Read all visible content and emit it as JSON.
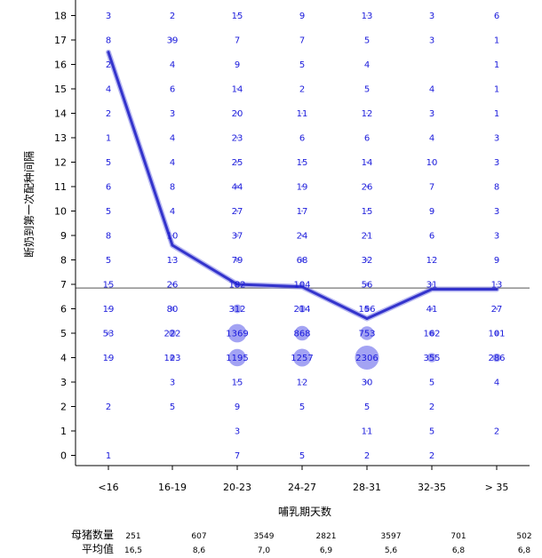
{
  "chart_data": {
    "type": "scatter",
    "xlabel": "哺乳期天数",
    "ylabel": "断奶到第一次配种间隔",
    "categories": [
      "<16",
      "16-19",
      "20-23",
      "24-27",
      "28-31",
      "32-35",
      "> 35"
    ],
    "y_ticks": [
      "0",
      "1",
      "2",
      "3",
      "4",
      "5",
      "6",
      "7",
      "8",
      "9",
      "10",
      "11",
      "12",
      "13",
      "14",
      "15",
      "16",
      "17",
      "18"
    ],
    "ylim": [
      -0.4,
      18.3
    ],
    "reference_line_y": 6.85,
    "counts": [
      [
        "1",
        "",
        "2",
        "",
        "19",
        "53",
        "19",
        "15",
        "5",
        "8",
        "5",
        "6",
        "5",
        "1",
        "2",
        "4",
        "2",
        "8",
        "3"
      ],
      [
        "",
        "",
        "5",
        "3",
        "123",
        "222",
        "80",
        "26",
        "13",
        "10",
        "4",
        "8",
        "4",
        "4",
        "3",
        "6",
        "4",
        "39",
        "2"
      ],
      [
        "7",
        "3",
        "9",
        "15",
        "1195",
        "1369",
        "312",
        "182",
        "79",
        "37",
        "27",
        "44",
        "25",
        "23",
        "20",
        "14",
        "9",
        "7",
        "15"
      ],
      [
        "5",
        "",
        "5",
        "12",
        "1257",
        "868",
        "214",
        "104",
        "68",
        "24",
        "17",
        "19",
        "15",
        "6",
        "11",
        "2",
        "5",
        "7",
        "9"
      ],
      [
        "2",
        "11",
        "5",
        "30",
        "2306",
        "753",
        "156",
        "56",
        "32",
        "21",
        "15",
        "26",
        "14",
        "6",
        "12",
        "5",
        "4",
        "5",
        "13"
      ],
      [
        "2",
        "5",
        "2",
        "5",
        "355",
        "162",
        "41",
        "31",
        "12",
        "6",
        "9",
        "7",
        "10",
        "4",
        "3",
        "4",
        "",
        "3",
        "3"
      ],
      [
        "",
        "2",
        "",
        "4",
        "286",
        "101",
        "27",
        "13",
        "9",
        "3",
        "3",
        "8",
        "3",
        "3",
        "1",
        "1",
        "1",
        "1",
        "6"
      ]
    ],
    "bubble_max_value": 2306,
    "series": [
      {
        "values": [
          16.5,
          8.6,
          7.0,
          6.9,
          5.6,
          6.8,
          6.8
        ]
      }
    ],
    "colors": {
      "line": "#3333cc",
      "bubble": "#8c8cf0",
      "text": "#1a1adb"
    },
    "grid": false
  },
  "footer": {
    "rows": [
      {
        "label": "母猪数量",
        "values": [
          "251",
          "607",
          "3549",
          "2821",
          "3597",
          "701",
          "502"
        ]
      },
      {
        "label": "平均值",
        "values": [
          "16,5",
          "8,6",
          "7,0",
          "6,9",
          "5,6",
          "6,8",
          "6,8"
        ]
      }
    ]
  }
}
